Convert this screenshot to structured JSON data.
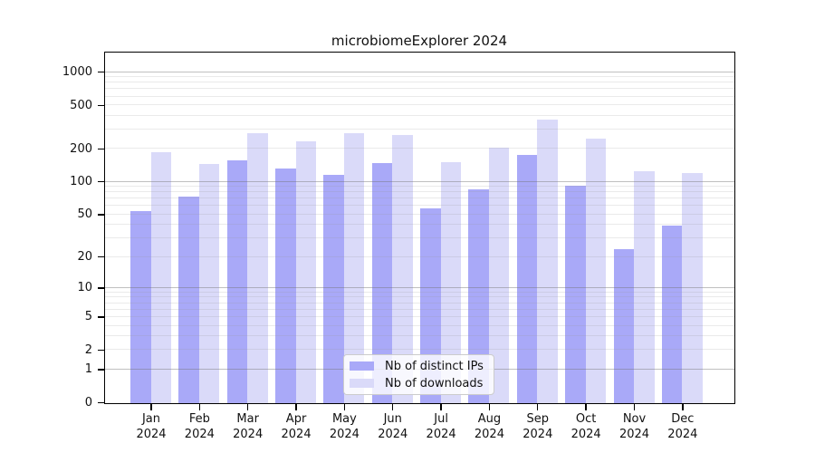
{
  "chart_data": {
    "type": "bar",
    "title": "microbiomeExplorer 2024",
    "categories": [
      {
        "month": "Jan",
        "year": "2024"
      },
      {
        "month": "Feb",
        "year": "2024"
      },
      {
        "month": "Mar",
        "year": "2024"
      },
      {
        "month": "Apr",
        "year": "2024"
      },
      {
        "month": "May",
        "year": "2024"
      },
      {
        "month": "Jun",
        "year": "2024"
      },
      {
        "month": "Jul",
        "year": "2024"
      },
      {
        "month": "Aug",
        "year": "2024"
      },
      {
        "month": "Sep",
        "year": "2024"
      },
      {
        "month": "Oct",
        "year": "2024"
      },
      {
        "month": "Nov",
        "year": "2024"
      },
      {
        "month": "Dec",
        "year": "2024"
      }
    ],
    "series": [
      {
        "name": "Nb of distinct IPs",
        "color": "#a9a9f8",
        "values": [
          54,
          74,
          160,
          134,
          118,
          150,
          58,
          87,
          180,
          93,
          24,
          40
        ]
      },
      {
        "name": "Nb of downloads",
        "color": "#dadaf9",
        "values": [
          188,
          148,
          283,
          239,
          280,
          270,
          153,
          207,
          376,
          250,
          127,
          122
        ]
      }
    ],
    "xlabel": "",
    "ylabel": "",
    "y_axis": {
      "scale": "log1p",
      "ticks": [
        0,
        1,
        2,
        5,
        10,
        20,
        50,
        100,
        200,
        500,
        1000
      ],
      "axis_max": 1494,
      "major_gridlines": [
        1,
        10,
        100,
        1000
      ],
      "grid": "both"
    },
    "legend_position": "lower center inside",
    "colors": {
      "major_grid": "rgba(115,115,115,0.45)",
      "minor_grid": "rgba(150,150,150,0.20)",
      "axis": "#000000",
      "background": "#ffffff"
    }
  }
}
